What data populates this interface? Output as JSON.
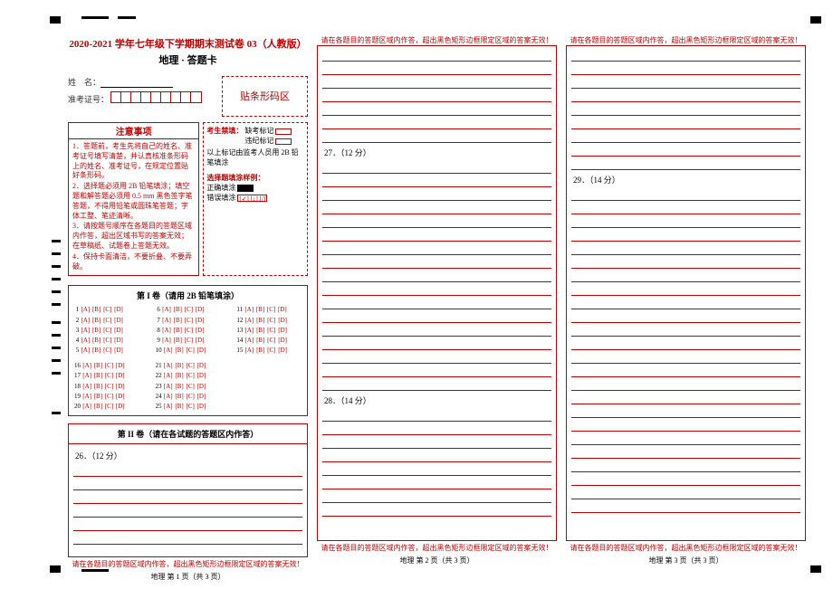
{
  "header": {
    "title": "2020-2021 学年七年级下学期期末测试卷 03（人教版）",
    "subtitle": "地理 · 答题卡"
  },
  "student": {
    "name_label": "姓　名：",
    "id_label": "准考证号：",
    "barcode_label": "贴条形码区"
  },
  "notice": {
    "title": "注意事项",
    "items": [
      "1．答题前，考生先将自己的姓名、准考证号填写清楚，并认真核准条形码上的姓名、准考证号，在规定位置贴好条形码。",
      "2．选择题必须用 2B 铅笔填涂；填空题和解答题必须用 0.5 mm 黑色签字笔答题，不得用铅笔或圆珠笔答题；字体工整、笔迹清晰。",
      "3．请按题号顺序在各题目的答题区域内作答，超出区域书写的答案无效；在草稿纸、试题卷上答题无效。",
      "4．保持卡面清洁，不要折叠、不要弄破。"
    ]
  },
  "marks": {
    "forbidden_label": "考生禁填：",
    "missing": "缺考标记",
    "violation": "违纪标记",
    "note": "以上标记由监考人员用 2B 铅笔填涂",
    "example_label": "选择题填涂样例：",
    "correct": "正确填涂",
    "wrong": "错误填涂",
    "wrong_marks": "[✓] [↓] [/]"
  },
  "section1": {
    "title": "第 I 卷（请用 2B 铅笔填涂）",
    "options": "[A] [B] [C] [D]",
    "group1": {
      "start": 1,
      "end": 5
    },
    "group2": {
      "start": 6,
      "end": 10
    },
    "group3": {
      "start": 11,
      "end": 15
    },
    "group4": {
      "start": 16,
      "end": 20
    },
    "group5": {
      "start": 21,
      "end": 25
    }
  },
  "section2": {
    "title": "第 II 卷（请在各试题的答题区内作答）",
    "q26": "26．（12 分）",
    "q27": "27．（12 分）",
    "q28": "28．（14 分）",
    "q29": "29．（14 分）"
  },
  "footer": {
    "warning": "请在各题目的答题区域内作答，超出黑色矩形边框限定区域的答案无效！",
    "page1": "地理 第 1 页（共 3 页）",
    "page2": "地理 第 2 页（共 3 页）",
    "page3": "地理 第 3 页（共 3 页）"
  }
}
